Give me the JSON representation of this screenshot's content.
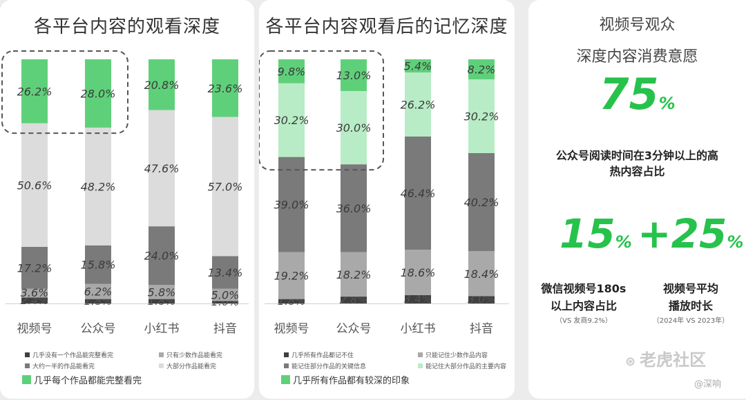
{
  "chart_data": [
    {
      "type": "bar",
      "title": "各平台内容的观看深度",
      "categories": [
        "视频号",
        "公众号",
        "小红书",
        "抖音"
      ],
      "series": [
        {
          "name": "几乎没有一个作品能完整看完",
          "values": [
            2.4,
            1.8,
            1.8,
            1.0
          ]
        },
        {
          "name": "只有少数作品能看完",
          "values": [
            3.6,
            6.2,
            5.8,
            5.0
          ]
        },
        {
          "name": "大约一半的作品能看完",
          "values": [
            17.2,
            15.8,
            24.0,
            13.4
          ]
        },
        {
          "name": "大部分作品能看完",
          "values": [
            50.6,
            48.2,
            47.6,
            57.0
          ]
        },
        {
          "name": "几乎每个作品都能完整看完",
          "values": [
            26.2,
            28.0,
            20.8,
            23.6
          ]
        }
      ],
      "labels": [
        [
          "2.4%",
          "3.6%",
          "17.2%",
          "50.6%",
          "26.2%"
        ],
        [
          "1.8%",
          "6.2%",
          "15.8%",
          "48.2%",
          "28.0%"
        ],
        [
          "1.8%",
          "5.8%",
          "24.0%",
          "47.6%",
          "20.8%"
        ],
        [
          "1.0%",
          "5.0%",
          "13.4%",
          "57.0%",
          "23.6%"
        ]
      ],
      "colors": [
        "#3f3f3f",
        "#a9a9a9",
        "#7a7a7a",
        "#dcdcdc",
        "#5fd07a"
      ],
      "highlight_categories": [
        0,
        1
      ],
      "stacked": true
    },
    {
      "type": "bar",
      "title": "各平台内容观看后的记忆深度",
      "categories": [
        "视频号",
        "公众号",
        "小红书",
        "抖音"
      ],
      "series": [
        {
          "name": "几乎所有作品都记不住",
          "values": [
            1.8,
            2.8,
            3.4,
            3.0
          ]
        },
        {
          "name": "只能记住少数作品内容",
          "values": [
            19.2,
            18.2,
            18.6,
            18.4
          ]
        },
        {
          "name": "能记住部分作品的关键信息",
          "values": [
            39.0,
            36.0,
            46.4,
            40.2
          ]
        },
        {
          "name": "能记住大部分作品的主要内容",
          "values": [
            30.2,
            30.0,
            26.2,
            30.2
          ]
        },
        {
          "name": "几乎所有作品都有较深的印象",
          "values": [
            9.8,
            13.0,
            5.4,
            8.2
          ]
        }
      ],
      "labels": [
        [
          "1.8%",
          "19.2%",
          "39.0%",
          "30.2%",
          "9.8%"
        ],
        [
          "2.8%",
          "18.2%",
          "36.0%",
          "30.0%",
          "13.0%"
        ],
        [
          "3.4%",
          "18.6%",
          "46.4%",
          "26.2%",
          "5.4%"
        ],
        [
          "3.0%",
          "18.4%",
          "40.2%",
          "30.2%",
          "8.2%"
        ]
      ],
      "colors": [
        "#3f3f3f",
        "#a9a9a9",
        "#7a7a7a",
        "#b8ecc6",
        "#5fd07a"
      ],
      "highlight_categories": [
        0,
        1
      ],
      "stacked": true
    }
  ],
  "panel3": {
    "title_line1": "视频号观众",
    "title_line2": "深度内容消费意愿",
    "stat1_value": "75",
    "stat1_unit": "%",
    "stat1_desc_line1": "公众号阅读时间在3分钟以上的高",
    "stat1_desc_line2": "热内容占比",
    "stat2_value": "15",
    "stat2_unit": "%",
    "stat2_desc_line1": "微信视频号180s",
    "stat2_desc_line2": "以上内容占比",
    "stat2_note": "（VS 友商9.2%）",
    "stat3_value": "+25",
    "stat3_unit": "%",
    "stat3_desc_line1": "视频号平均",
    "stat3_desc_line2": "播放时长",
    "stat3_note": "（2024年 VS 2023年）"
  },
  "watermark": {
    "brand": "老虎社区",
    "handle": "@深响"
  },
  "colors": {
    "accent_green": "#27c24c"
  }
}
